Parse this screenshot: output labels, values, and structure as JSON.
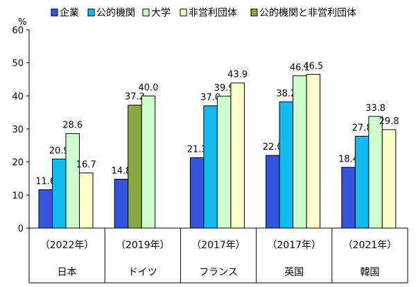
{
  "chart_data": {
    "type": "bar",
    "ylabel": "%",
    "ylim": [
      0,
      60
    ],
    "yticks": [
      0,
      10,
      20,
      30,
      40,
      50,
      60
    ],
    "grid": false,
    "legend_position": "top",
    "series": [
      {
        "name": "企業",
        "color": "#3355dd"
      },
      {
        "name": "公的機関",
        "color": "#11bbee"
      },
      {
        "name": "大学",
        "color": "#ccffcc"
      },
      {
        "name": "非営利団体",
        "color": "#ffffcc"
      },
      {
        "name": "公的機関と非営利団体",
        "color": "#88aa44"
      }
    ],
    "groups": [
      {
        "country": "日本",
        "year": "（2022年）",
        "bars": [
          {
            "series": 0,
            "value": 11.6,
            "label": "11.6"
          },
          {
            "series": 1,
            "value": 20.9,
            "label": "20.9"
          },
          {
            "series": 2,
            "value": 28.6,
            "label": "28.6"
          },
          {
            "series": 3,
            "value": 16.7,
            "label": "16.7"
          }
        ]
      },
      {
        "country": "ドイツ",
        "year": "（2019年）",
        "bars": [
          {
            "series": 0,
            "value": 14.8,
            "label": "14.8"
          },
          {
            "series": 4,
            "value": 37.2,
            "label": "37.2"
          },
          {
            "series": 2,
            "value": 40.0,
            "label": "40.0"
          }
        ]
      },
      {
        "country": "フランス",
        "year": "（2017年）",
        "bars": [
          {
            "series": 0,
            "value": 21.3,
            "label": "21.3"
          },
          {
            "series": 1,
            "value": 37.0,
            "label": "37.0"
          },
          {
            "series": 2,
            "value": 39.9,
            "label": "39.9"
          },
          {
            "series": 3,
            "value": 43.9,
            "label": "43.9"
          }
        ]
      },
      {
        "country": "英国",
        "year": "（2017年）",
        "bars": [
          {
            "series": 0,
            "value": 22.0,
            "label": "22.0"
          },
          {
            "series": 1,
            "value": 38.2,
            "label": "38.2"
          },
          {
            "series": 2,
            "value": 46.1,
            "label": "46.1"
          },
          {
            "series": 3,
            "value": 46.5,
            "label": "46.5"
          }
        ]
      },
      {
        "country": "韓国",
        "year": "（2021年）",
        "bars": [
          {
            "series": 0,
            "value": 18.4,
            "label": "18.4"
          },
          {
            "series": 1,
            "value": 27.8,
            "label": "27.8"
          },
          {
            "series": 2,
            "value": 33.8,
            "label": "33.8"
          },
          {
            "series": 3,
            "value": 29.8,
            "label": "29.8"
          }
        ]
      }
    ]
  }
}
